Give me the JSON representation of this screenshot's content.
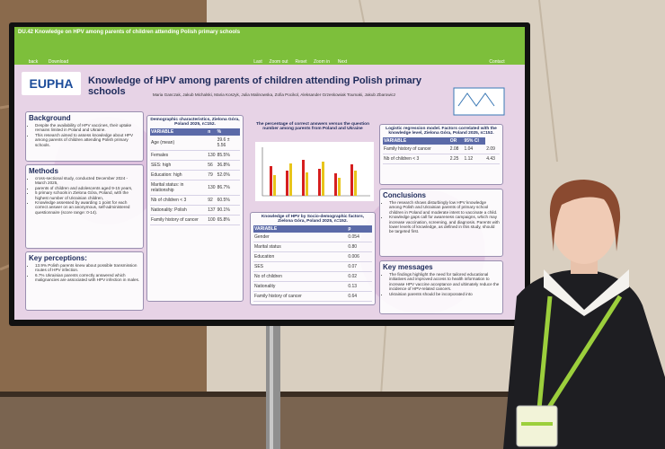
{
  "screen": {
    "header": "DU.42 Knowledge on HPV among parents of children attending Polish primary schools",
    "toolbar": [
      "back",
      "Download",
      "Last",
      "Zoom out",
      "Reset",
      "Zoom in",
      "Next",
      "Contact"
    ]
  },
  "poster": {
    "logo": "EUPHA",
    "title": "Knowledge of HPV among parents of children attending Polish primary schools",
    "authors": "Maria Ganczak, Jakub Michalski, Maria Koszyk, Julia Malinowska, Zofia Pocikol, Aleksander Grzeskowiak Toumaki, Jakub Zbarowicz",
    "background": {
      "heading": "Background",
      "items": [
        "Despite the availability of HPV vaccines, their uptake remains limited in Poland and Ukraine.",
        "This research aimed to assess knowledge about HPV among parents of children attending Polish primary schools."
      ]
    },
    "methods": {
      "heading": "Methods",
      "items": [
        "cross-sectional study, conducted December 2024 - March 2025,",
        "parents of children and adolescents aged 9-15 years,",
        "5 primary schools in Zielona Góra, Poland, with the highest number of Ukrainian children,",
        "Knowledge assessed by awarding 1 point for each correct answer on an anonymous, self-administered questionnaire (score range: 0-14)."
      ]
    },
    "key_perceptions": {
      "heading": "Key perceptions:",
      "items": [
        "13.9% Polish parents knew about possible transmission routes of HPV infection.",
        "6.7% Ukrainian parents correctly answered which malignancies are associated with HPV infection in males."
      ]
    },
    "demographics": {
      "title": "Demographic characteristics, Zielona Góra, Poland 2025, n=152.",
      "columns": [
        "VARIABLE",
        "n",
        "%"
      ],
      "rows": [
        [
          "Age (mean)",
          "",
          "39.6 ± 5.56"
        ],
        [
          "Females",
          "130",
          "85.5%"
        ],
        [
          "SES: high",
          "56",
          "36.8%"
        ],
        [
          "Education: high",
          "79",
          "52.0%"
        ],
        [
          "Marital status: in relationship",
          "130",
          "86.7%"
        ],
        [
          "Nb of children < 3",
          "92",
          "60.5%"
        ],
        [
          "Nationality: Polish",
          "137",
          "90.1%"
        ],
        [
          "Family history of cancer",
          "100",
          "65.8%"
        ]
      ]
    },
    "chart": {
      "title": "The percentage of correct answers versus the question number among parents from Poland and Ukraine"
    },
    "knowledge": {
      "title": "Knowledge of HPV by Socio-demographic factors, Zielona Góra, Poland 2025, n=152.",
      "columns": [
        "VARIABLE",
        "p"
      ],
      "rows": [
        [
          "Gender",
          "0.054"
        ],
        [
          "Marital status",
          "0.80"
        ],
        [
          "Education",
          "0.006"
        ],
        [
          "SES",
          "0.07"
        ],
        [
          "No of children",
          "0.02"
        ],
        [
          "Nationality",
          "0.13"
        ],
        [
          "Family history of cancer",
          "0.64"
        ]
      ]
    },
    "regression": {
      "title": "Logistic regression model. Factors correlated with the knowledge level, Zielona Góra, Poland 2025, n=152.",
      "columns": [
        "VARIABLE",
        "OR",
        "95% CI"
      ],
      "rows": [
        [
          "Family history of cancer",
          "2.08",
          "1.04",
          "2.09"
        ],
        [
          "Nb of children < 3",
          "2.25",
          "1.12",
          "4.43"
        ]
      ]
    },
    "conclusions": {
      "heading": "Conclusions",
      "items": [
        "The research shows disturbingly low HPV knowledge among Polish and Ukrainian parents of primary school children in Poland and moderate intent to vaccinate a child.",
        "Knowledge gaps call for awareness campaigns, which may increase vaccination, screening, and diagnosis. Parents with lower levels of knowledge, as defined in this study, should be targeted first."
      ]
    },
    "key_messages": {
      "heading": "Key messages",
      "items": [
        "The findings highlight the need for tailored educational initiatives and improved access to health information to increase HPV vaccine acceptance and ultimately reduce the incidence of HPV-related cancers.",
        "Ukrainian parents should be incorporated into"
      ]
    }
  }
}
